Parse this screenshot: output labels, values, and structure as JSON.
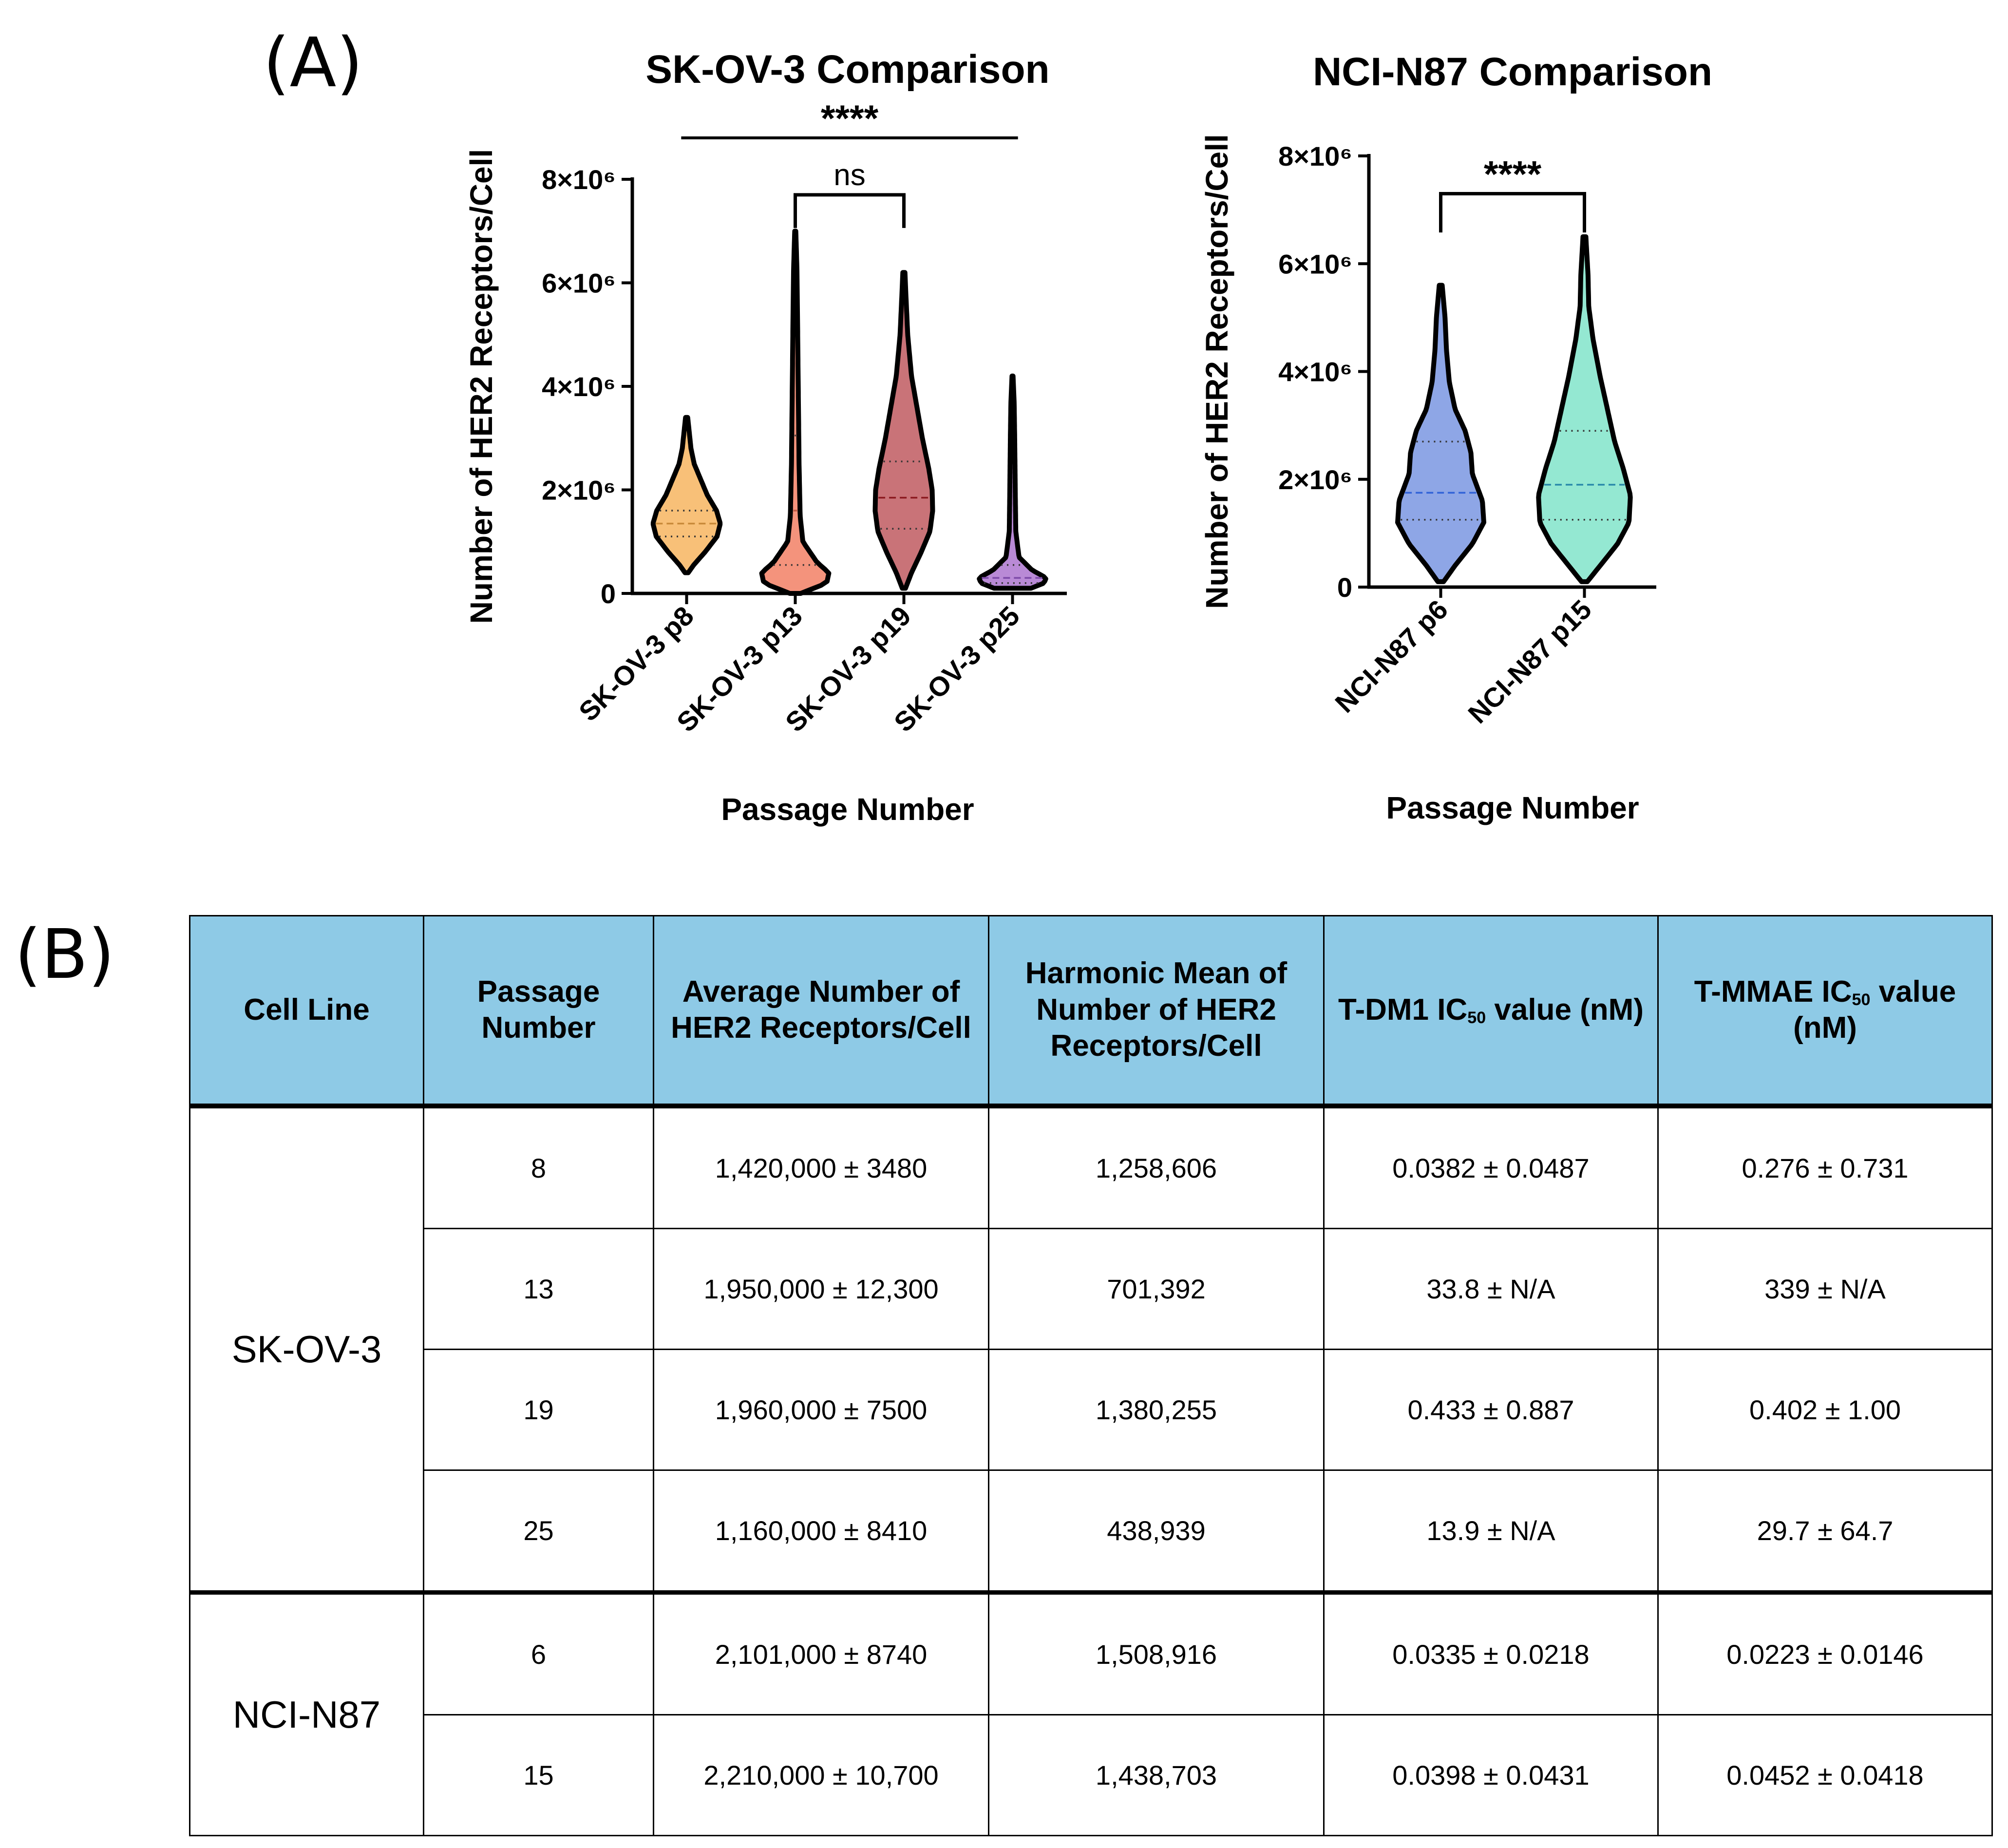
{
  "panel_labels": {
    "a": "(A)",
    "b": "(B)"
  },
  "chart_data": [
    {
      "type": "violin",
      "title": "SK-OV-3 Comparison",
      "xlabel": "Passage Number",
      "ylabel": "Number of HER2 Receptors/Cell",
      "ylim": [
        0,
        8000000
      ],
      "ticks": [
        {
          "value": 0,
          "label": "0"
        },
        {
          "value": 2000000,
          "label": "2×10⁶"
        },
        {
          "value": 4000000,
          "label": "4×10⁶"
        },
        {
          "value": 6000000,
          "label": "6×10⁶"
        },
        {
          "value": 8000000,
          "label": "8×10⁶"
        }
      ],
      "groups": [
        {
          "name": "SK-OV-3 p8",
          "color": "#f8c078",
          "line": "#c98a3a",
          "min": 400000,
          "max": 3400000,
          "q1": 1100000,
          "median": 1350000,
          "q3": 1600000,
          "shape": [
            [
              400000,
              0.03
            ],
            [
              550000,
              0.13
            ],
            [
              800000,
              0.34
            ],
            [
              1100000,
              0.56
            ],
            [
              1350000,
              0.62
            ],
            [
              1600000,
              0.55
            ],
            [
              1900000,
              0.38
            ],
            [
              2200000,
              0.26
            ],
            [
              2500000,
              0.14
            ],
            [
              2800000,
              0.08
            ],
            [
              3100000,
              0.05
            ],
            [
              3400000,
              0.02
            ]
          ]
        },
        {
          "name": "SK-OV-3 p13",
          "color": "#f4937c",
          "line": "#c25a44",
          "min": 0,
          "max": 7000000,
          "q1": 550000,
          "median": 1600000,
          "q3": 3050000,
          "shape": [
            [
              0,
              0.1
            ],
            [
              200000,
              0.58
            ],
            [
              400000,
              0.62
            ],
            [
              600000,
              0.4
            ],
            [
              1000000,
              0.14
            ],
            [
              1500000,
              0.09
            ],
            [
              2500000,
              0.07
            ],
            [
              3500000,
              0.06
            ],
            [
              4500000,
              0.05
            ],
            [
              5500000,
              0.04
            ],
            [
              6300000,
              0.03
            ],
            [
              7000000,
              0.01
            ]
          ]
        },
        {
          "name": "SK-OV-3 p19",
          "color": "#c97378",
          "line": "#8b1a20",
          "min": 100000,
          "max": 6200000,
          "q1": 1250000,
          "median": 1850000,
          "q3": 2550000,
          "shape": [
            [
              100000,
              0.03
            ],
            [
              400000,
              0.14
            ],
            [
              800000,
              0.32
            ],
            [
              1200000,
              0.48
            ],
            [
              1600000,
              0.53
            ],
            [
              2000000,
              0.52
            ],
            [
              2400000,
              0.46
            ],
            [
              3000000,
              0.34
            ],
            [
              3600000,
              0.24
            ],
            [
              4200000,
              0.14
            ],
            [
              5000000,
              0.07
            ],
            [
              5700000,
              0.04
            ],
            [
              6200000,
              0.02
            ]
          ]
        },
        {
          "name": "SK-OV-3 p25",
          "color": "#b98ad6",
          "line": "#7d4aa8",
          "min": 100000,
          "max": 4200000,
          "q1": 200000,
          "median": 300000,
          "q3": 550000,
          "shape": [
            [
              100000,
              0.34
            ],
            [
              200000,
              0.58
            ],
            [
              300000,
              0.62
            ],
            [
              450000,
              0.36
            ],
            [
              700000,
              0.12
            ],
            [
              1200000,
              0.06
            ],
            [
              2000000,
              0.05
            ],
            [
              3000000,
              0.04
            ],
            [
              3700000,
              0.03
            ],
            [
              4200000,
              0.01
            ]
          ]
        }
      ],
      "comparisons": [
        {
          "from": 0,
          "to": 3,
          "label": "****",
          "y": 8800000,
          "style": "line"
        },
        {
          "from": 1,
          "to": 2,
          "label": "ns",
          "y": 7700000,
          "style": "bracket"
        }
      ]
    },
    {
      "type": "violin",
      "title": "NCI-N87 Comparison",
      "xlabel": "Passage Number",
      "ylabel": "Number of HER2 Receptors/Cell",
      "ylim": [
        0,
        8000000
      ],
      "ticks": [
        {
          "value": 0,
          "label": "0"
        },
        {
          "value": 2000000,
          "label": "2×10⁶"
        },
        {
          "value": 4000000,
          "label": "4×10⁶"
        },
        {
          "value": 6000000,
          "label": "6×10⁶"
        },
        {
          "value": 8000000,
          "label": "8×10⁶"
        }
      ],
      "groups": [
        {
          "name": "NCI-N87 p6",
          "color": "#8ea6e6",
          "line": "#3062d8",
          "min": 100000,
          "max": 5600000,
          "q1": 1250000,
          "median": 1750000,
          "q3": 2700000,
          "shape": [
            [
              100000,
              0.04
            ],
            [
              400000,
              0.2
            ],
            [
              800000,
              0.44
            ],
            [
              1200000,
              0.6
            ],
            [
              1600000,
              0.58
            ],
            [
              2100000,
              0.44
            ],
            [
              2500000,
              0.42
            ],
            [
              2900000,
              0.34
            ],
            [
              3300000,
              0.2
            ],
            [
              3800000,
              0.12
            ],
            [
              4400000,
              0.08
            ],
            [
              5000000,
              0.06
            ],
            [
              5600000,
              0.02
            ]
          ]
        },
        {
          "name": "NCI-N87 p15",
          "color": "#94e8d2",
          "line": "#2a8aaa",
          "min": 100000,
          "max": 6500000,
          "q1": 1250000,
          "median": 1900000,
          "q3": 2900000,
          "shape": [
            [
              100000,
              0.04
            ],
            [
              400000,
              0.22
            ],
            [
              800000,
              0.46
            ],
            [
              1200000,
              0.62
            ],
            [
              1700000,
              0.64
            ],
            [
              2200000,
              0.54
            ],
            [
              2700000,
              0.42
            ],
            [
              3300000,
              0.32
            ],
            [
              3900000,
              0.22
            ],
            [
              4600000,
              0.12
            ],
            [
              5200000,
              0.06
            ],
            [
              5800000,
              0.05
            ],
            [
              6500000,
              0.02
            ]
          ]
        }
      ],
      "comparisons": [
        {
          "from": 0,
          "to": 1,
          "label": "****",
          "y": 7300000,
          "style": "bracket"
        }
      ]
    }
  ],
  "table": {
    "headers": {
      "cell_line": "Cell Line",
      "passage": "Passage Number",
      "average": "Average Number of HER2 Receptors/Cell",
      "harmonic": "Harmonic Mean of Number of HER2 Receptors/Cell",
      "tdm1_prefix": "T-DM1 IC",
      "tdm1_sub": "50",
      "tdm1_suffix": " value (nM)",
      "tmmae_prefix": "T-MMAE IC",
      "tmmae_sub": "50",
      "tmmae_suffix": " value (nM)"
    },
    "groups": [
      {
        "cell_line": "SK-OV-3",
        "rows": [
          {
            "passage": "8",
            "average": "1,420,000 ± 3480",
            "harmonic": "1,258,606",
            "tdm1": "0.0382 ± 0.0487",
            "tmmae": "0.276 ± 0.731"
          },
          {
            "passage": "13",
            "average": "1,950,000 ± 12,300",
            "harmonic": "701,392",
            "tdm1": "33.8 ± N/A",
            "tmmae": "339 ± N/A"
          },
          {
            "passage": "19",
            "average": "1,960,000 ± 7500",
            "harmonic": "1,380,255",
            "tdm1": "0.433 ± 0.887",
            "tmmae": "0.402 ± 1.00"
          },
          {
            "passage": "25",
            "average": "1,160,000 ± 8410",
            "harmonic": "438,939",
            "tdm1": "13.9 ± N/A",
            "tmmae": "29.7 ± 64.7"
          }
        ]
      },
      {
        "cell_line": "NCI-N87",
        "rows": [
          {
            "passage": "6",
            "average": "2,101,000 ± 8740",
            "harmonic": "1,508,916",
            "tdm1": "0.0335 ± 0.0218",
            "tmmae": "0.0223 ± 0.0146"
          },
          {
            "passage": "15",
            "average": "2,210,000 ± 10,700",
            "harmonic": "1,438,703",
            "tdm1": "0.0398 ± 0.0431",
            "tmmae": "0.0452 ± 0.0418"
          }
        ]
      }
    ]
  }
}
